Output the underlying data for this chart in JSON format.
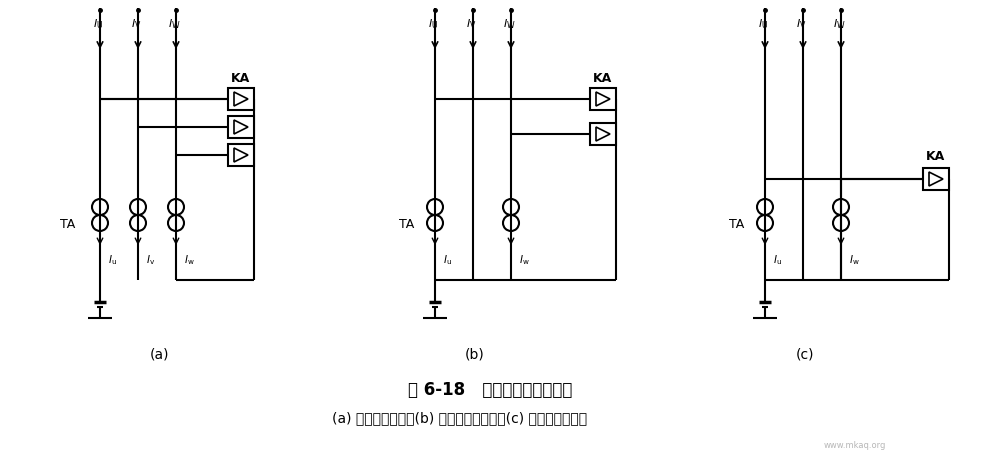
{
  "title": "图 6-18   电流保护的接线方式",
  "subtitle": "(a) 完全星形接线；(b) 不完全星形接线；(c) 两相电流差接线",
  "bg_color": "#ffffff",
  "title_fontsize": 12,
  "subtitle_fontsize": 10,
  "diagram_label_a": "(a)",
  "diagram_label_b": "(b)",
  "diagram_label_c": "(c)",
  "label_TA": "TA",
  "label_KA": "KA",
  "fig_w": 10.03,
  "fig_h": 4.58,
  "dpi": 100
}
